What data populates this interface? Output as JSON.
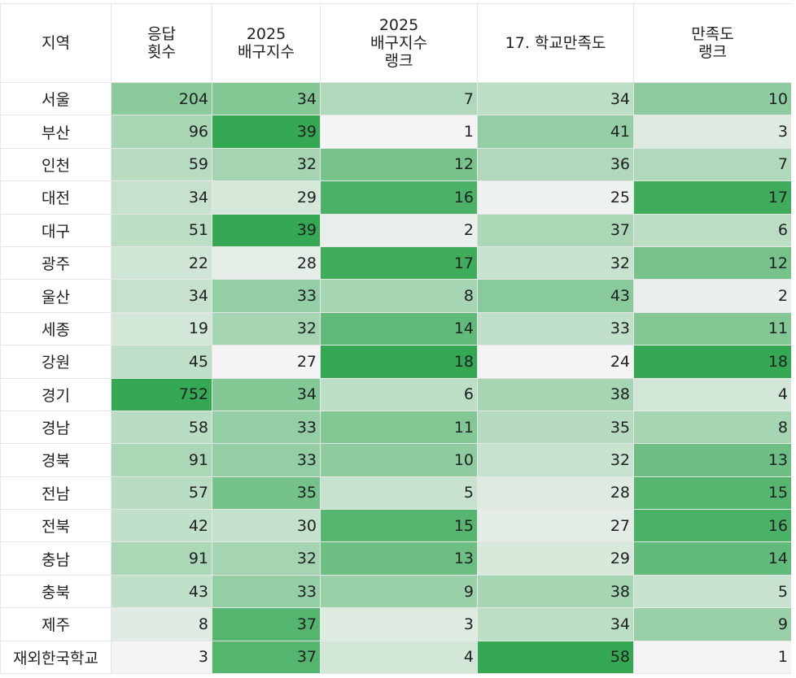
{
  "headers": [
    {
      "key": "region",
      "lines": [
        "지역"
      ]
    },
    {
      "key": "responses",
      "lines": [
        "응답",
        "횟수"
      ]
    },
    {
      "key": "index2025",
      "lines": [
        "2025",
        "배구지수"
      ]
    },
    {
      "key": "rank2025",
      "lines": [
        "2025",
        "배구지수",
        "랭크"
      ]
    },
    {
      "key": "satisfaction",
      "lines": [
        "17. 학교만족도"
      ]
    },
    {
      "key": "satrank",
      "lines": [
        "만족도",
        "랭크"
      ]
    }
  ],
  "rows": [
    {
      "region": "서울",
      "values": [
        204,
        34,
        7,
        34,
        10
      ]
    },
    {
      "region": "부산",
      "values": [
        96,
        39,
        1,
        41,
        3
      ]
    },
    {
      "region": "인천",
      "values": [
        59,
        32,
        12,
        36,
        7
      ]
    },
    {
      "region": "대전",
      "values": [
        34,
        29,
        16,
        25,
        17
      ]
    },
    {
      "region": "대구",
      "values": [
        51,
        39,
        2,
        37,
        6
      ]
    },
    {
      "region": "광주",
      "values": [
        22,
        28,
        17,
        32,
        12
      ]
    },
    {
      "region": "울산",
      "values": [
        34,
        33,
        8,
        43,
        2
      ]
    },
    {
      "region": "세종",
      "values": [
        19,
        32,
        14,
        33,
        11
      ]
    },
    {
      "region": "강원",
      "values": [
        45,
        27,
        18,
        24,
        18
      ]
    },
    {
      "region": "경기",
      "values": [
        752,
        34,
        6,
        38,
        4
      ]
    },
    {
      "region": "경남",
      "values": [
        58,
        33,
        11,
        35,
        8
      ]
    },
    {
      "region": "경북",
      "values": [
        91,
        33,
        10,
        32,
        13
      ]
    },
    {
      "region": "전남",
      "values": [
        57,
        35,
        5,
        28,
        15
      ]
    },
    {
      "region": "전북",
      "values": [
        42,
        30,
        15,
        27,
        16
      ]
    },
    {
      "region": "충남",
      "values": [
        91,
        32,
        13,
        29,
        14
      ]
    },
    {
      "region": "충북",
      "values": [
        43,
        33,
        9,
        38,
        5
      ]
    },
    {
      "region": "제주",
      "values": [
        8,
        37,
        3,
        34,
        9
      ]
    },
    {
      "region": "재외한국학교",
      "values": [
        3,
        37,
        4,
        58,
        1
      ]
    }
  ],
  "colors": {
    "scale_min": "#f4f4f4",
    "scale_max": "#34a853",
    "grid_line": "#e6e6e6"
  }
}
